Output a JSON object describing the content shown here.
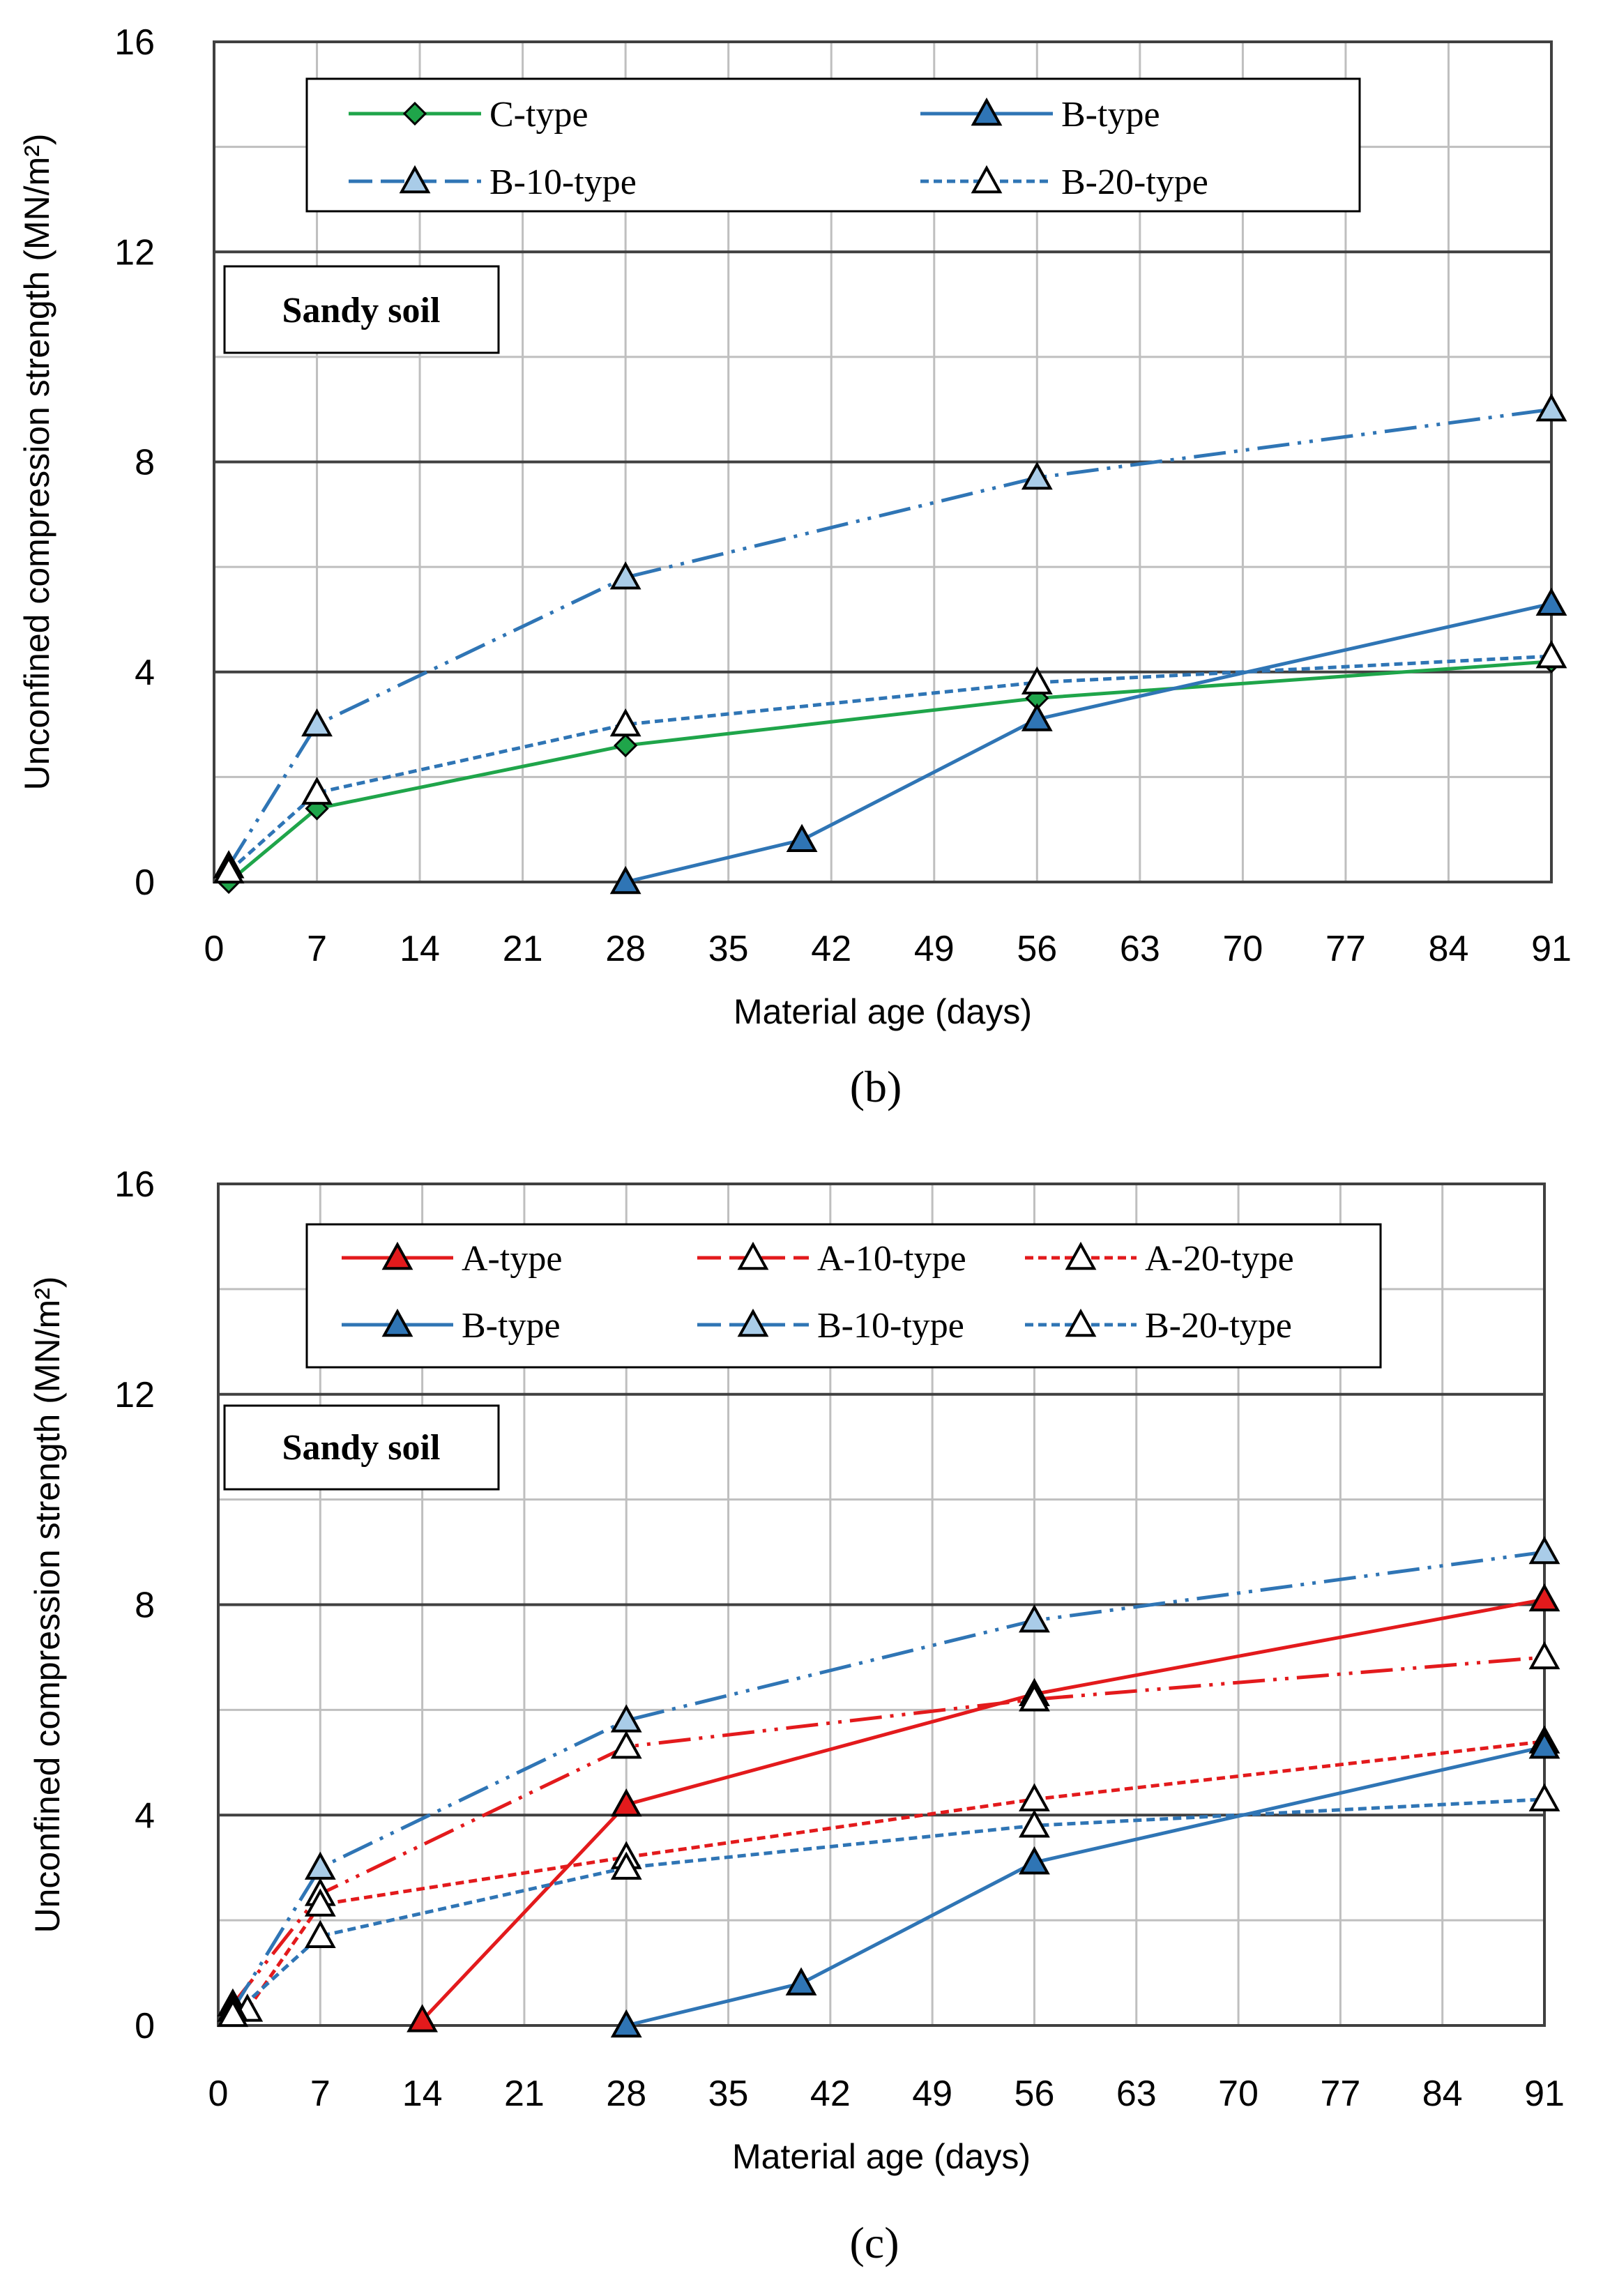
{
  "colors": {
    "green": "#1fa54a",
    "blue": "#2f75b5",
    "red": "#e31a1c",
    "light_blue": "#a9cce8",
    "grid_light": "#bfbfbf",
    "grid_major": "#404040"
  },
  "chart_data": [
    {
      "type": "line",
      "panel_label": "(b)",
      "annotation": "Sandy soil",
      "xlabel": "Material age (days)",
      "ylabel": "Unconfined compression strength (MN/m²)",
      "xlim": [
        0,
        91
      ],
      "ylim": [
        0,
        16
      ],
      "xticks": [
        0,
        7,
        14,
        21,
        28,
        35,
        42,
        49,
        56,
        63,
        70,
        77,
        84,
        91
      ],
      "yticks": [
        0,
        4,
        8,
        12,
        16
      ],
      "grid": true,
      "legend_position": "top",
      "series": [
        {
          "name": "C-type",
          "color": "#1fa54a",
          "dash": "solid",
          "marker": "diamond",
          "fill": "#1fa54a",
          "x": [
            1,
            7,
            28,
            56,
            91
          ],
          "y": [
            0.0,
            1.4,
            2.6,
            3.5,
            4.2
          ]
        },
        {
          "name": "B-type",
          "color": "#2f75b5",
          "dash": "solid",
          "marker": "triangle",
          "fill": "#2f75b5",
          "x": [
            28,
            40,
            56,
            91
          ],
          "y": [
            0.0,
            0.8,
            3.1,
            5.3
          ]
        },
        {
          "name": "B-10-type",
          "color": "#2f75b5",
          "dash": "dashdotdot",
          "marker": "triangle",
          "fill": "#a9cce8",
          "x": [
            1,
            7,
            28,
            56,
            91
          ],
          "y": [
            0.3,
            3.0,
            5.8,
            7.7,
            9.0
          ]
        },
        {
          "name": "B-20-type",
          "color": "#2f75b5",
          "dash": "dotted",
          "marker": "triangle",
          "fill": "#ffffff",
          "x": [
            1,
            7,
            28,
            56,
            91
          ],
          "y": [
            0.2,
            1.7,
            3.0,
            3.8,
            4.3
          ]
        }
      ]
    },
    {
      "type": "line",
      "panel_label": "(c)",
      "annotation": "Sandy soil",
      "xlabel": "Material age (days)",
      "ylabel": "Unconfined compression strength (MN/m²)",
      "xlim": [
        0,
        91
      ],
      "ylim": [
        0,
        16
      ],
      "xticks": [
        0,
        7,
        14,
        21,
        28,
        35,
        42,
        49,
        56,
        63,
        70,
        77,
        84,
        91
      ],
      "yticks": [
        0,
        4,
        8,
        12,
        16
      ],
      "grid": true,
      "legend_position": "top",
      "series": [
        {
          "name": "A-type",
          "color": "#e31a1c",
          "dash": "solid",
          "marker": "triangle",
          "fill": "#e31a1c",
          "x": [
            14,
            28,
            56,
            91
          ],
          "y": [
            0.1,
            4.2,
            6.3,
            8.1
          ]
        },
        {
          "name": "A-10-type",
          "color": "#e31a1c",
          "dash": "dashdotdot",
          "marker": "triangle",
          "fill": "#ffffff",
          "x": [
            1,
            7,
            28,
            56,
            91
          ],
          "y": [
            0.4,
            2.5,
            5.3,
            6.2,
            7.0
          ]
        },
        {
          "name": "A-20-type",
          "color": "#e31a1c",
          "dash": "dotted",
          "marker": "triangle",
          "fill": "#ffffff",
          "x": [
            2,
            7,
            28,
            56,
            91
          ],
          "y": [
            0.3,
            2.3,
            3.2,
            4.3,
            5.4
          ]
        },
        {
          "name": "B-type",
          "color": "#2f75b5",
          "dash": "solid",
          "marker": "triangle",
          "fill": "#2f75b5",
          "x": [
            28,
            40,
            56,
            91
          ],
          "y": [
            0.0,
            0.8,
            3.1,
            5.3
          ]
        },
        {
          "name": "B-10-type",
          "color": "#2f75b5",
          "dash": "dashdotdot",
          "marker": "triangle",
          "fill": "#a9cce8",
          "x": [
            1,
            7,
            28,
            56,
            91
          ],
          "y": [
            0.3,
            3.0,
            5.8,
            7.7,
            9.0
          ]
        },
        {
          "name": "B-20-type",
          "color": "#2f75b5",
          "dash": "dotted",
          "marker": "triangle",
          "fill": "#ffffff",
          "x": [
            1,
            7,
            28,
            56,
            91
          ],
          "y": [
            0.2,
            1.7,
            3.0,
            3.8,
            4.3
          ]
        }
      ]
    }
  ]
}
